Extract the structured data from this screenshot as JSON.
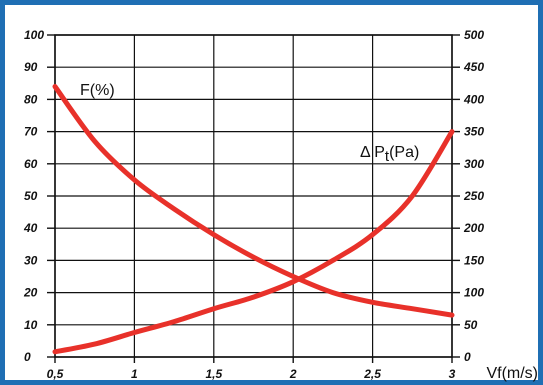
{
  "chart_data": {
    "type": "line",
    "xlabel": "Vf(m/s)",
    "xlim": [
      0.5,
      3
    ],
    "x_ticks": [
      "0,5",
      "1",
      "1,5",
      "2",
      "2,5",
      "3"
    ],
    "y_left": {
      "lim": [
        0,
        100
      ],
      "ticks": [
        "0",
        "10",
        "20",
        "30",
        "40",
        "50",
        "60",
        "70",
        "80",
        "90",
        "100"
      ]
    },
    "y_right": {
      "lim": [
        0,
        500
      ],
      "ticks": [
        "0",
        "50",
        "100",
        "150",
        "200",
        "250",
        "300",
        "350",
        "400",
        "450",
        "500"
      ]
    },
    "grid": true,
    "series": [
      {
        "name": "F(%)",
        "axis": "left",
        "color": "#e8312a",
        "x": [
          0.5,
          0.75,
          1,
          1.25,
          1.5,
          1.75,
          2,
          2.25,
          2.5,
          2.75,
          3
        ],
        "y": [
          84,
          67,
          55,
          46,
          38,
          31,
          25,
          20,
          17,
          15,
          13
        ]
      },
      {
        "name": "ΔPt(Pa)",
        "label_parts": [
          "Δ P",
          "t",
          "(Pa)"
        ],
        "axis": "right",
        "color": "#e8312a",
        "x": [
          0.5,
          0.75,
          1,
          1.25,
          1.5,
          1.75,
          2,
          2.25,
          2.5,
          2.75,
          3
        ],
        "y": [
          8,
          20,
          38,
          55,
          75,
          93,
          117,
          150,
          190,
          250,
          350
        ]
      }
    ]
  }
}
